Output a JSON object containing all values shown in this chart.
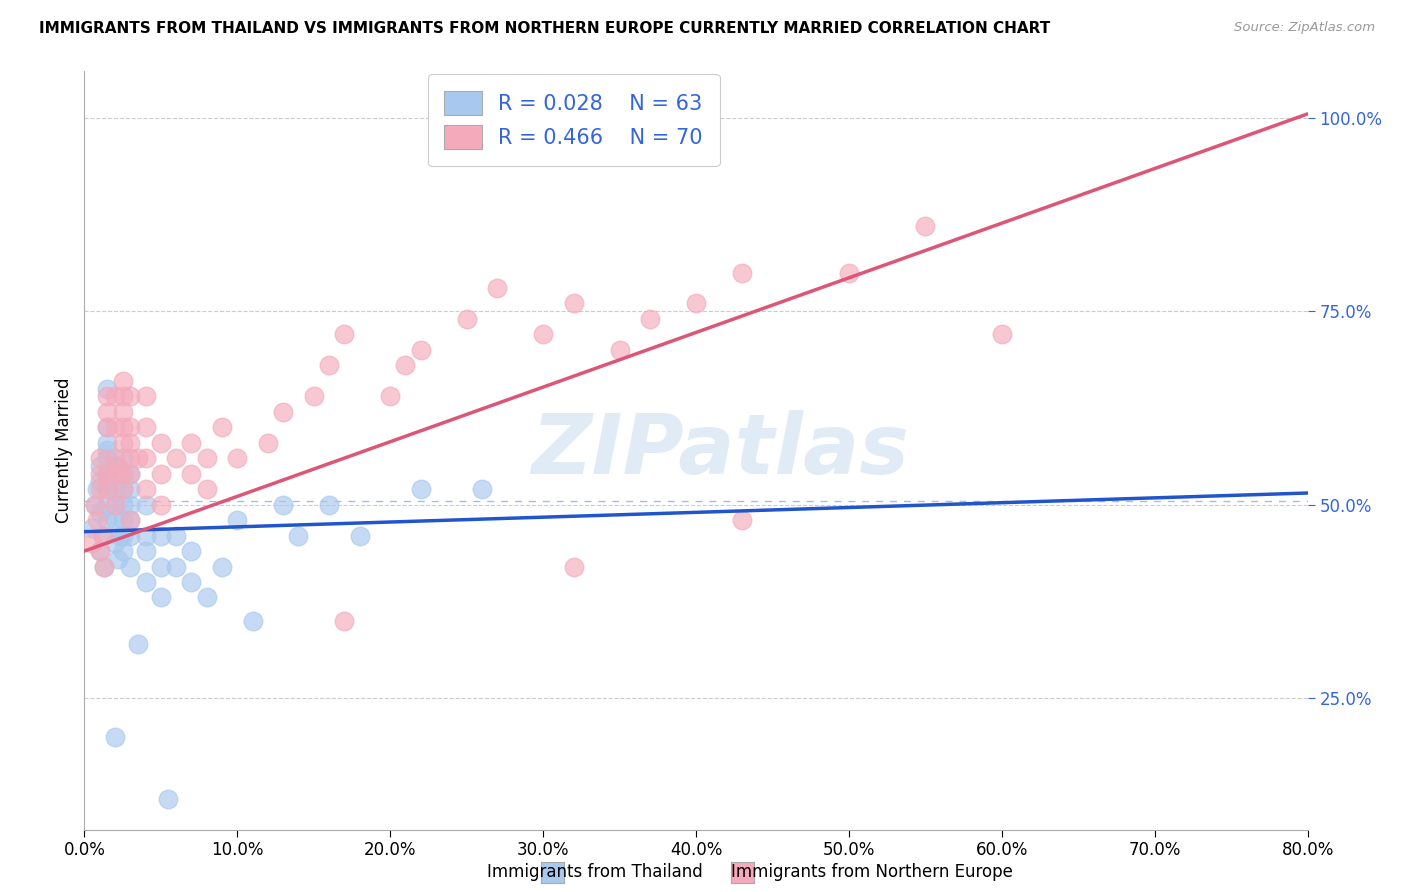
{
  "title": "IMMIGRANTS FROM THAILAND VS IMMIGRANTS FROM NORTHERN EUROPE CURRENTLY MARRIED CORRELATION CHART",
  "source": "Source: ZipAtlas.com",
  "ylabel": "Currently Married",
  "xlim": [
    0.0,
    0.8
  ],
  "ylim": [
    0.08,
    1.06
  ],
  "legend_r1": "R = 0.028",
  "legend_n1": "N = 63",
  "legend_r2": "R = 0.466",
  "legend_n2": "N = 70",
  "color_blue": "#A8C8EE",
  "color_pink": "#F4AABB",
  "line_color_blue": "#2255CC",
  "line_color_pink": "#DD5577",
  "text_color_blue": "#3366DD",
  "watermark": "ZIPatlas",
  "yticks": [
    0.25,
    0.5,
    0.75,
    1.0
  ],
  "xticks": [
    0.0,
    0.1,
    0.2,
    0.3,
    0.4,
    0.5,
    0.6,
    0.7,
    0.8
  ],
  "blue_line_x0": 0.0,
  "blue_line_y0": 0.465,
  "blue_line_x1": 0.8,
  "blue_line_y1": 0.515,
  "pink_line_x0": 0.0,
  "pink_line_y0": 0.44,
  "pink_line_x1": 0.8,
  "pink_line_y1": 1.005,
  "dashed_line_y": 0.505,
  "blue_x": [
    0.005,
    0.007,
    0.008,
    0.01,
    0.01,
    0.01,
    0.01,
    0.012,
    0.013,
    0.015,
    0.015,
    0.015,
    0.015,
    0.015,
    0.015,
    0.015,
    0.015,
    0.015,
    0.015,
    0.02,
    0.02,
    0.02,
    0.02,
    0.02,
    0.022,
    0.023,
    0.025,
    0.025,
    0.025,
    0.025,
    0.025,
    0.025,
    0.025,
    0.03,
    0.03,
    0.03,
    0.03,
    0.03,
    0.03,
    0.04,
    0.04,
    0.04,
    0.04,
    0.05,
    0.05,
    0.05,
    0.06,
    0.06,
    0.07,
    0.07,
    0.08,
    0.09,
    0.1,
    0.11,
    0.13,
    0.14,
    0.16,
    0.18,
    0.22,
    0.26,
    0.02,
    0.035,
    0.055
  ],
  "blue_y": [
    0.47,
    0.5,
    0.52,
    0.44,
    0.49,
    0.53,
    0.55,
    0.46,
    0.42,
    0.48,
    0.5,
    0.52,
    0.53,
    0.54,
    0.56,
    0.57,
    0.58,
    0.6,
    0.65,
    0.45,
    0.48,
    0.5,
    0.52,
    0.55,
    0.43,
    0.46,
    0.44,
    0.46,
    0.48,
    0.5,
    0.52,
    0.54,
    0.56,
    0.42,
    0.46,
    0.48,
    0.5,
    0.52,
    0.54,
    0.4,
    0.44,
    0.46,
    0.5,
    0.38,
    0.42,
    0.46,
    0.42,
    0.46,
    0.4,
    0.44,
    0.38,
    0.42,
    0.48,
    0.35,
    0.5,
    0.46,
    0.5,
    0.46,
    0.52,
    0.52,
    0.2,
    0.32,
    0.12
  ],
  "pink_x": [
    0.005,
    0.007,
    0.008,
    0.01,
    0.01,
    0.01,
    0.01,
    0.012,
    0.013,
    0.015,
    0.015,
    0.015,
    0.015,
    0.015,
    0.02,
    0.02,
    0.02,
    0.02,
    0.02,
    0.022,
    0.025,
    0.025,
    0.025,
    0.025,
    0.025,
    0.025,
    0.025,
    0.03,
    0.03,
    0.03,
    0.03,
    0.03,
    0.03,
    0.035,
    0.04,
    0.04,
    0.04,
    0.04,
    0.05,
    0.05,
    0.05,
    0.06,
    0.07,
    0.07,
    0.08,
    0.08,
    0.09,
    0.1,
    0.12,
    0.13,
    0.15,
    0.16,
    0.17,
    0.2,
    0.21,
    0.22,
    0.25,
    0.27,
    0.3,
    0.32,
    0.35,
    0.37,
    0.4,
    0.43,
    0.5,
    0.55,
    0.6,
    0.17,
    0.32,
    0.43
  ],
  "pink_y": [
    0.45,
    0.5,
    0.48,
    0.44,
    0.52,
    0.54,
    0.56,
    0.46,
    0.42,
    0.52,
    0.54,
    0.6,
    0.62,
    0.64,
    0.5,
    0.54,
    0.56,
    0.6,
    0.64,
    0.55,
    0.52,
    0.54,
    0.58,
    0.6,
    0.62,
    0.64,
    0.66,
    0.48,
    0.54,
    0.56,
    0.58,
    0.6,
    0.64,
    0.56,
    0.52,
    0.56,
    0.6,
    0.64,
    0.5,
    0.54,
    0.58,
    0.56,
    0.54,
    0.58,
    0.52,
    0.56,
    0.6,
    0.56,
    0.58,
    0.62,
    0.64,
    0.68,
    0.72,
    0.64,
    0.68,
    0.7,
    0.74,
    0.78,
    0.72,
    0.76,
    0.7,
    0.74,
    0.76,
    0.8,
    0.8,
    0.86,
    0.72,
    0.35,
    0.42,
    0.48
  ]
}
